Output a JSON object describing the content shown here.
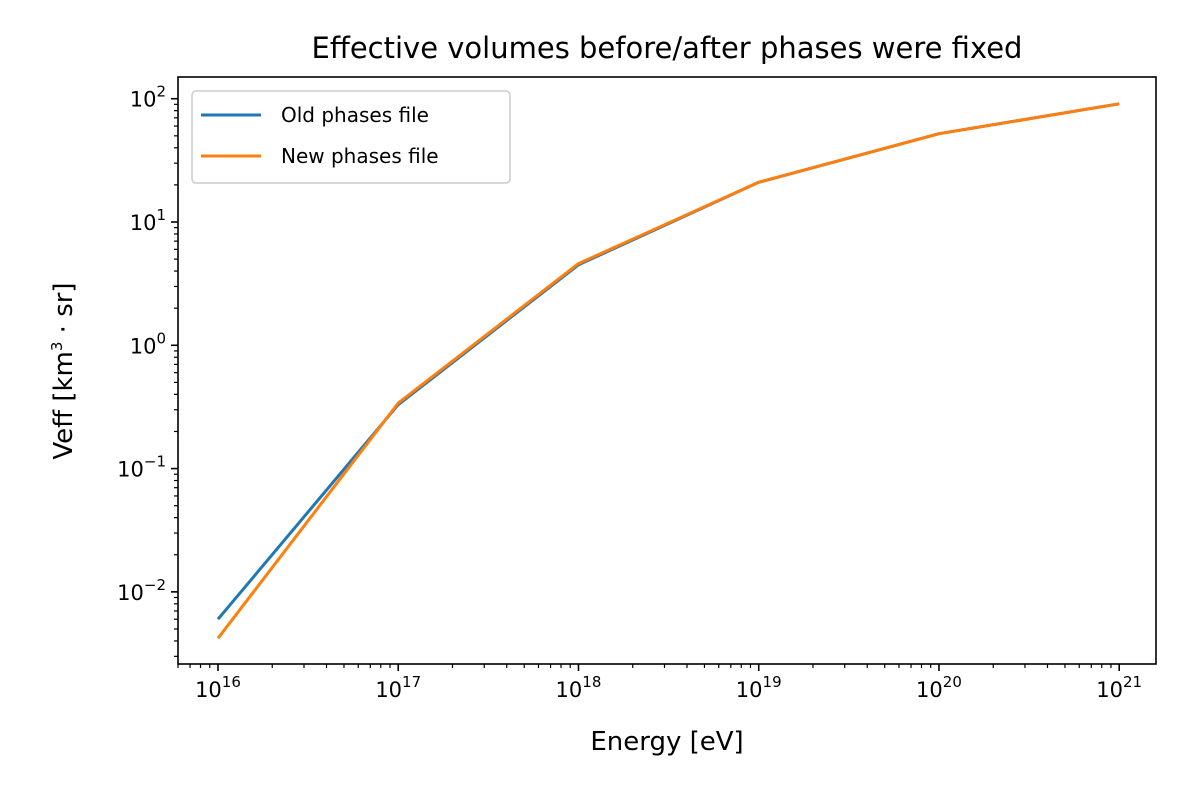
{
  "chart_data": {
    "type": "line",
    "title": "Effective volumes before/after phases were fixed",
    "xlabel": "Energy [eV]",
    "ylabel_base": "Veff [km",
    "ylabel_sup": "3",
    "ylabel_tail": " · sr]",
    "xscale": "log",
    "yscale": "log",
    "xlim": [
      6000000000000000.0,
      1.6e+21
    ],
    "ylim": [
      0.0026,
      150
    ],
    "x": [
      1e+16,
      1e+17,
      1e+18,
      1e+19,
      1e+20,
      1e+21
    ],
    "x_ticks": [
      {
        "base": "10",
        "exp": "16",
        "value": 1e+16
      },
      {
        "base": "10",
        "exp": "17",
        "value": 1e+17
      },
      {
        "base": "10",
        "exp": "18",
        "value": 1e+18
      },
      {
        "base": "10",
        "exp": "19",
        "value": 1e+19
      },
      {
        "base": "10",
        "exp": "20",
        "value": 1e+20
      },
      {
        "base": "10",
        "exp": "21",
        "value": 1e+21
      }
    ],
    "y_ticks": [
      {
        "base": "10",
        "exp": "−2",
        "value": 0.01
      },
      {
        "base": "10",
        "exp": "−1",
        "value": 0.1
      },
      {
        "base": "10",
        "exp": "0",
        "value": 1
      },
      {
        "base": "10",
        "exp": "1",
        "value": 10
      },
      {
        "base": "10",
        "exp": "2",
        "value": 100
      }
    ],
    "series": [
      {
        "name": "Old phases file",
        "color": "#1f77b4",
        "values": [
          0.006,
          0.33,
          4.5,
          21,
          52,
          91
        ]
      },
      {
        "name": "New phases file",
        "color": "#ff7f0e",
        "values": [
          0.0042,
          0.34,
          4.6,
          21,
          52,
          91
        ]
      }
    ],
    "legend": "top-left",
    "grid": false
  }
}
